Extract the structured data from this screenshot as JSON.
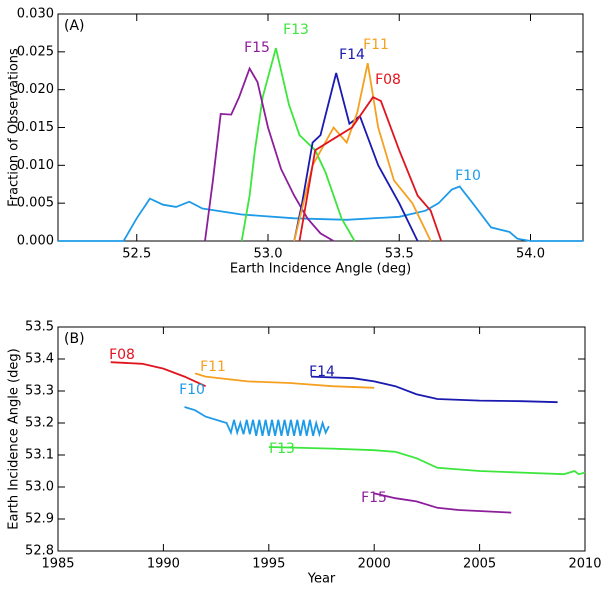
{
  "chart_data": [
    {
      "type": "line",
      "annotation": "(A)",
      "x_label": "Earth Incidence Angle (deg)",
      "y_label": "Fraction of Observations",
      "xlim": [
        52.2,
        54.2
      ],
      "xticks": [
        52.5,
        {
          "value": 53,
          "label": "53.0"
        },
        53.5,
        {
          "value": 54,
          "label": "54.0"
        }
      ],
      "ylim": [
        0,
        0.03
      ],
      "yticks": [
        {
          "value": 0,
          "label": "0.000"
        },
        0.005,
        {
          "value": 0.01,
          "label": "0.010"
        },
        0.015,
        {
          "value": 0.02,
          "label": "0.020"
        },
        0.025,
        {
          "value": 0.03,
          "label": "0.030"
        }
      ],
      "series": [
        {
          "name": "F10",
          "color": "#1e9be8",
          "x": [
            52.2,
            52.45,
            52.5,
            52.55,
            52.6,
            52.65,
            52.7,
            52.75,
            52.9,
            53.1,
            53.3,
            53.5,
            53.6,
            53.65,
            53.7,
            53.73,
            53.78,
            53.85,
            53.92,
            53.95,
            54.0,
            54.2
          ],
          "values": [
            0,
            0,
            0.003,
            0.0056,
            0.0048,
            0.0045,
            0.0052,
            0.0043,
            0.0035,
            0.003,
            0.0028,
            0.0032,
            0.004,
            0.005,
            0.0068,
            0.0072,
            0.005,
            0.0018,
            0.0012,
            0.0003,
            0,
            0
          ]
        },
        {
          "name": "F13",
          "color": "#3ce63c",
          "x": [
            52.9,
            52.93,
            52.95,
            52.98,
            53.03,
            53.08,
            53.12,
            53.18,
            53.22,
            53.28,
            53.33
          ],
          "values": [
            0,
            0.006,
            0.012,
            0.019,
            0.0255,
            0.018,
            0.014,
            0.012,
            0.009,
            0.003,
            0
          ]
        },
        {
          "name": "F15",
          "color": "#8c1e9b",
          "x": [
            52.76,
            52.79,
            52.82,
            52.86,
            52.89,
            52.93,
            52.96,
            53.0,
            53.05,
            53.1,
            53.15,
            53.2,
            53.25
          ],
          "values": [
            0,
            0.008,
            0.0168,
            0.0167,
            0.019,
            0.0228,
            0.021,
            0.015,
            0.0095,
            0.006,
            0.003,
            0.001,
            0
          ]
        },
        {
          "name": "F14",
          "color": "#1a1ab0",
          "x": [
            53.1,
            53.13,
            53.17,
            53.2,
            53.26,
            53.31,
            53.35,
            53.42,
            53.5,
            53.57
          ],
          "values": [
            0,
            0.005,
            0.013,
            0.014,
            0.0222,
            0.0155,
            0.0165,
            0.01,
            0.005,
            0
          ]
        },
        {
          "name": "F11",
          "color": "#f5a020",
          "x": [
            53.1,
            53.17,
            53.25,
            53.3,
            53.34,
            53.38,
            53.42,
            53.48,
            53.55,
            53.62
          ],
          "values": [
            0,
            0.01,
            0.015,
            0.013,
            0.017,
            0.0235,
            0.015,
            0.008,
            0.005,
            0
          ]
        },
        {
          "name": "F08",
          "color": "#e0141e",
          "x": [
            53.12,
            53.18,
            53.25,
            53.32,
            53.4,
            53.43,
            53.5,
            53.57,
            53.62,
            53.66
          ],
          "values": [
            0,
            0.012,
            0.0135,
            0.015,
            0.019,
            0.0185,
            0.012,
            0.006,
            0.004,
            0
          ]
        }
      ]
    },
    {
      "type": "line",
      "annotation": "(B)",
      "x_label": "Year",
      "y_label": "Earth Incidence Angle (deg)",
      "xlim": [
        1985,
        2010
      ],
      "xticks": [
        1985,
        1990,
        1995,
        2000,
        2005,
        2010
      ],
      "ylim": [
        52.8,
        53.5
      ],
      "yticks": [
        52.8,
        52.9,
        {
          "value": 53,
          "label": "53.0"
        },
        53.1,
        53.2,
        53.3,
        53.4,
        53.5
      ],
      "series": [
        {
          "name": "F08",
          "color": "#e0141e",
          "x": [
            1987.5,
            1989,
            1990,
            1991,
            1992
          ],
          "values": [
            53.39,
            53.385,
            53.37,
            53.345,
            53.315
          ]
        },
        {
          "name": "F11",
          "color": "#f5a020",
          "x": [
            1991.5,
            1992,
            1994,
            1996,
            1998,
            2000
          ],
          "values": [
            53.355,
            53.345,
            53.33,
            53.325,
            53.315,
            53.31
          ]
        },
        {
          "name": "F14",
          "color": "#1a1ab0",
          "x": [
            1997,
            1999,
            2000,
            2001,
            2002,
            2003,
            2005,
            2007,
            2008.7
          ],
          "values": [
            53.345,
            53.34,
            53.33,
            53.315,
            53.29,
            53.275,
            53.27,
            53.268,
            53.265
          ]
        },
        {
          "name": "F10",
          "color": "#1e9be8",
          "x": [
            1991,
            1991.5,
            1992,
            1993,
            1993.2,
            1993.35,
            1993.5,
            1993.65,
            1993.8,
            1993.95,
            1994.1,
            1994.25,
            1994.4,
            1994.55,
            1994.7,
            1994.85,
            1995,
            1995.15,
            1995.3,
            1995.45,
            1995.6,
            1995.75,
            1995.9,
            1996.05,
            1996.2,
            1996.35,
            1996.5,
            1996.65,
            1996.8,
            1996.95,
            1997.1,
            1997.25,
            1997.4,
            1997.55,
            1997.7,
            1997.85
          ],
          "values": [
            53.25,
            53.24,
            53.22,
            53.2,
            53.17,
            53.21,
            53.17,
            53.2,
            53.165,
            53.21,
            53.165,
            53.21,
            53.16,
            53.21,
            53.16,
            53.21,
            53.16,
            53.21,
            53.16,
            53.21,
            53.16,
            53.21,
            53.16,
            53.21,
            53.16,
            53.21,
            53.16,
            53.21,
            53.16,
            53.21,
            53.16,
            53.2,
            53.165,
            53.2,
            53.17,
            53.19
          ]
        },
        {
          "name": "F13",
          "color": "#3ce63c",
          "x": [
            1995,
            1998,
            2000,
            2001,
            2002,
            2003,
            2005,
            2007,
            2009,
            2009.5,
            2009.7,
            2010
          ],
          "values": [
            53.125,
            53.12,
            53.115,
            53.11,
            53.09,
            53.06,
            53.05,
            53.045,
            53.04,
            53.05,
            53.04,
            53.045
          ]
        },
        {
          "name": "F15",
          "color": "#8c1e9b",
          "x": [
            2000,
            2001,
            2002,
            2003,
            2004,
            2006.5
          ],
          "values": [
            52.98,
            52.965,
            52.955,
            52.935,
            52.928,
            52.92
          ]
        }
      ]
    }
  ]
}
